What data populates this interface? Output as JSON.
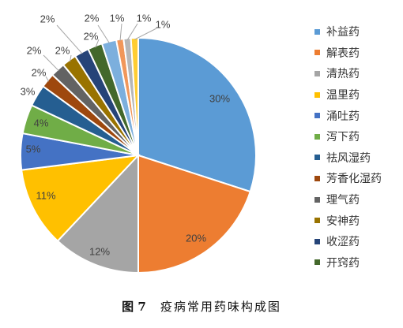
{
  "chart_data": {
    "type": "pie",
    "categories": [
      "补益药",
      "解表药",
      "清热药",
      "温里药",
      "涌吐药",
      "泻下药",
      "祛风湿药",
      "芳香化湿药",
      "理气药",
      "安神药",
      "收涩药",
      "开窍药",
      "",
      "",
      "",
      ""
    ],
    "values": [
      30,
      20,
      12,
      11,
      5,
      4,
      3,
      2,
      2,
      2,
      2,
      2,
      2,
      1,
      1,
      1
    ],
    "data_labels": [
      "30%",
      "20%",
      "12%",
      "11%",
      "5%",
      "4%",
      "3%",
      "2%",
      "2%",
      "2%",
      "2%",
      "2%",
      "2%",
      "1%",
      "1%",
      "1%"
    ],
    "colors": [
      "#5B9BD5",
      "#ED7D31",
      "#A5A5A5",
      "#FFC000",
      "#4472C4",
      "#70AD47",
      "#255E91",
      "#9E480E",
      "#636363",
      "#997300",
      "#264478",
      "#43682B",
      "#7CAFDD",
      "#F1975A",
      "#B7B7B7",
      "#FFCD33"
    ],
    "legend_position": "right"
  },
  "caption": {
    "figure_number": "图 7",
    "title": "疫病常用药味构成图"
  }
}
